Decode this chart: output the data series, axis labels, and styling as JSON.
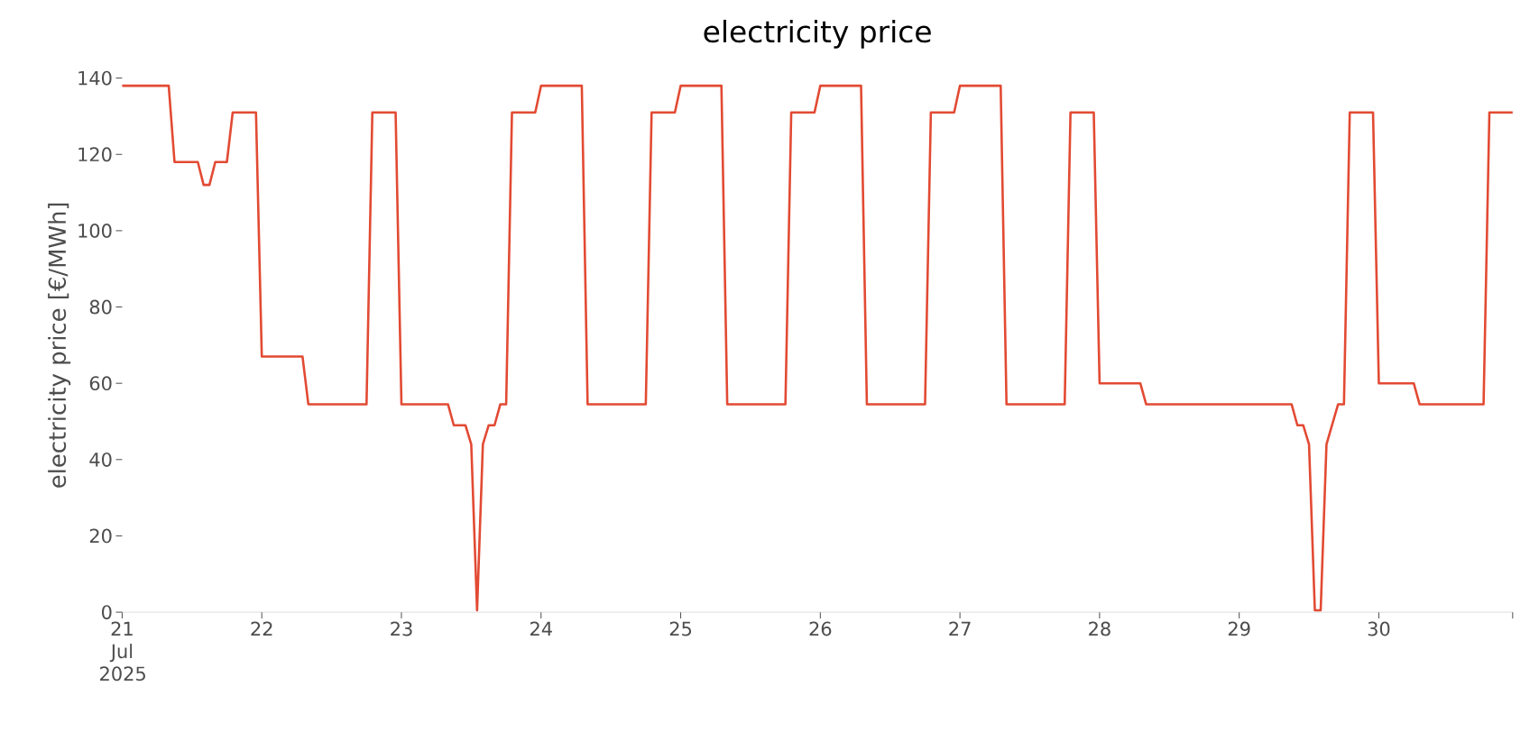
{
  "chart_data": {
    "type": "line",
    "title": "electricity price",
    "ylabel": "electricity price [€/MWh]",
    "color": "#e24a33",
    "x": [
      "2025-07-21T00:00",
      "2025-07-21T08:00",
      "2025-07-21T09:00",
      "2025-07-21T13:00",
      "2025-07-21T14:00",
      "2025-07-21T15:00",
      "2025-07-21T16:00",
      "2025-07-21T18:00",
      "2025-07-21T19:00",
      "2025-07-21T23:00",
      "2025-07-22T00:00",
      "2025-07-22T07:00",
      "2025-07-22T08:00",
      "2025-07-22T18:00",
      "2025-07-22T19:00",
      "2025-07-22T23:00",
      "2025-07-23T00:00",
      "2025-07-23T08:00",
      "2025-07-23T09:00",
      "2025-07-23T11:00",
      "2025-07-23T12:00",
      "2025-07-23T13:00",
      "2025-07-23T14:00",
      "2025-07-23T15:00",
      "2025-07-23T16:00",
      "2025-07-23T17:00",
      "2025-07-23T18:00",
      "2025-07-23T19:00",
      "2025-07-23T23:00",
      "2025-07-24T00:00",
      "2025-07-24T07:00",
      "2025-07-24T08:00",
      "2025-07-24T18:00",
      "2025-07-24T19:00",
      "2025-07-24T23:00",
      "2025-07-25T00:00",
      "2025-07-25T07:00",
      "2025-07-25T08:00",
      "2025-07-25T18:00",
      "2025-07-25T19:00",
      "2025-07-25T23:00",
      "2025-07-26T00:00",
      "2025-07-26T07:00",
      "2025-07-26T08:00",
      "2025-07-26T18:00",
      "2025-07-26T19:00",
      "2025-07-26T23:00",
      "2025-07-27T00:00",
      "2025-07-27T07:00",
      "2025-07-27T08:00",
      "2025-07-27T18:00",
      "2025-07-27T19:00",
      "2025-07-27T23:00",
      "2025-07-28T00:00",
      "2025-07-28T07:00",
      "2025-07-28T08:00",
      "2025-07-29T09:00",
      "2025-07-29T10:00",
      "2025-07-29T11:00",
      "2025-07-29T12:00",
      "2025-07-29T13:00",
      "2025-07-29T14:00",
      "2025-07-29T15:00",
      "2025-07-29T17:00",
      "2025-07-29T18:00",
      "2025-07-29T19:00",
      "2025-07-29T23:00",
      "2025-07-30T00:00",
      "2025-07-30T06:00",
      "2025-07-30T07:00",
      "2025-07-30T18:00",
      "2025-07-30T19:00",
      "2025-07-30T23:00"
    ],
    "values": [
      138,
      138,
      118,
      118,
      112,
      112,
      118,
      118,
      131,
      131,
      67,
      67,
      54.5,
      54.5,
      131,
      131,
      54.5,
      54.5,
      49,
      49,
      44,
      0.5,
      44,
      49,
      49,
      54.5,
      54.5,
      131,
      131,
      138,
      138,
      54.5,
      54.5,
      131,
      131,
      138,
      138,
      54.5,
      54.5,
      131,
      131,
      138,
      138,
      54.5,
      54.5,
      131,
      131,
      138,
      138,
      54.5,
      54.5,
      131,
      131,
      60,
      60,
      54.5,
      54.5,
      49,
      49,
      44,
      0.5,
      0.5,
      44,
      54.5,
      54.5,
      131,
      131,
      60,
      60,
      54.5,
      54.5,
      131,
      131
    ],
    "xlim": [
      "2025-07-21T00:00",
      "2025-07-30T23:00"
    ],
    "xticks": [
      {
        "value": "2025-07-21T00:00",
        "label": "21 Jul 2025"
      },
      {
        "value": "2025-07-22T00:00",
        "label": "22"
      },
      {
        "value": "2025-07-23T00:00",
        "label": "23"
      },
      {
        "value": "2025-07-24T00:00",
        "label": "24"
      },
      {
        "value": "2025-07-25T00:00",
        "label": "25"
      },
      {
        "value": "2025-07-26T00:00",
        "label": "26"
      },
      {
        "value": "2025-07-27T00:00",
        "label": "27"
      },
      {
        "value": "2025-07-28T00:00",
        "label": "28"
      },
      {
        "value": "2025-07-29T00:00",
        "label": "29"
      },
      {
        "value": "2025-07-30T00:00",
        "label": "30"
      },
      {
        "value": "2025-07-30T23:00",
        "label": null
      }
    ],
    "ylim": [
      0,
      140
    ],
    "yticks": [
      0,
      20,
      40,
      60,
      80,
      100,
      120,
      140
    ]
  }
}
